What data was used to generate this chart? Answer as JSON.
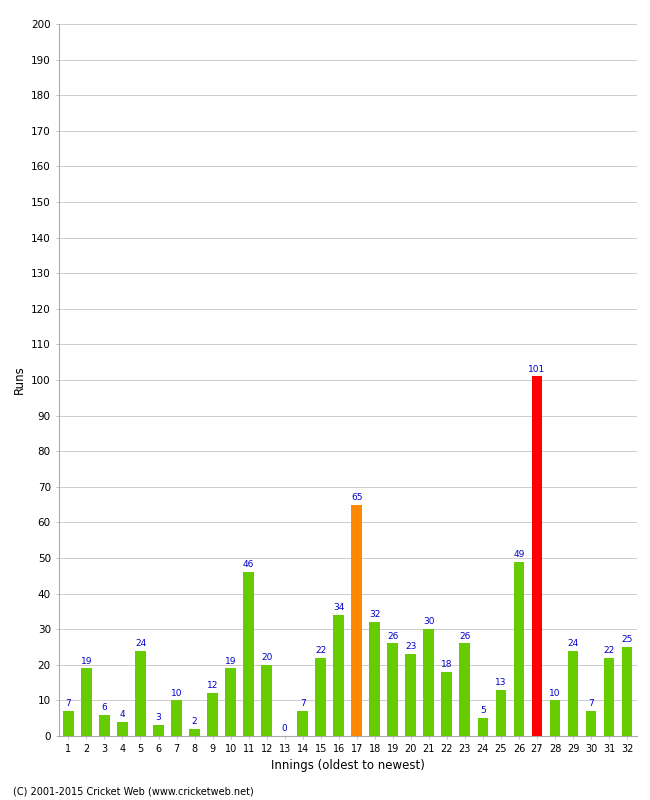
{
  "innings": [
    1,
    2,
    3,
    4,
    5,
    6,
    7,
    8,
    9,
    10,
    11,
    12,
    13,
    14,
    15,
    16,
    17,
    18,
    19,
    20,
    21,
    22,
    23,
    24,
    25,
    26,
    27,
    28,
    29,
    30,
    31,
    32
  ],
  "runs": [
    7,
    19,
    6,
    4,
    24,
    3,
    10,
    2,
    12,
    19,
    46,
    20,
    0,
    7,
    22,
    34,
    65,
    32,
    26,
    23,
    30,
    18,
    26,
    5,
    13,
    49,
    101,
    10,
    24,
    7,
    22,
    25
  ],
  "bar_colors": [
    "#66cc00",
    "#66cc00",
    "#66cc00",
    "#66cc00",
    "#66cc00",
    "#66cc00",
    "#66cc00",
    "#66cc00",
    "#66cc00",
    "#66cc00",
    "#66cc00",
    "#66cc00",
    "#66cc00",
    "#66cc00",
    "#66cc00",
    "#66cc00",
    "#ff8800",
    "#66cc00",
    "#66cc00",
    "#66cc00",
    "#66cc00",
    "#66cc00",
    "#66cc00",
    "#66cc00",
    "#66cc00",
    "#66cc00",
    "#ff0000",
    "#66cc00",
    "#66cc00",
    "#66cc00",
    "#66cc00",
    "#66cc00"
  ],
  "xlabel": "Innings (oldest to newest)",
  "ylabel": "Runs",
  "ylim": [
    0,
    200
  ],
  "yticks": [
    0,
    10,
    20,
    30,
    40,
    50,
    60,
    70,
    80,
    90,
    100,
    110,
    120,
    130,
    140,
    150,
    160,
    170,
    180,
    190,
    200
  ],
  "label_color": "#0000cc",
  "bg_color": "#ffffff",
  "grid_color": "#cccccc",
  "footer": "(C) 2001-2015 Cricket Web (www.cricketweb.net)"
}
